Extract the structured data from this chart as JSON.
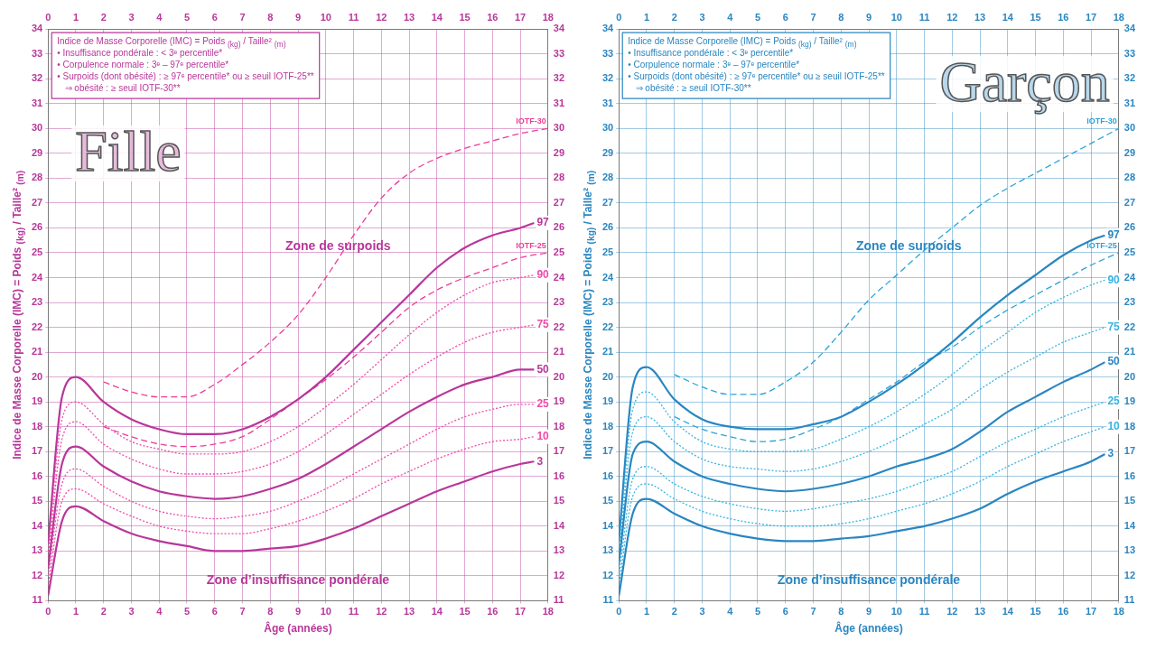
{
  "chart_data": [
    {
      "type": "line",
      "title": "Fille",
      "xlabel": "Âge (années)",
      "ylabel": "Indice de Masse Corporelle (IMC) = Poids $_{(kg)}$ / Taille² $_{(m)}$",
      "annotations": [
        "Indice de Masse Corporelle (IMC) = Poids $_{(kg)}$ / Taille² $_{(m)}$\n• Insuffisance pondérale : < 3ᵉ percentile*\n• Corpulence normale : 3ᵉ – 97ᵉ percentile*\n• Surpoids (dont obésité) : ≥ 97ᵉ percentile* ou ≥ seuil IOTF-25**\n   ⇒ obésité : ≥ seuil IOTF-30**",
        "Zone de surpoids",
        "Zone d’insuffisance pondérale"
      ],
      "xlim": [
        0,
        18
      ],
      "xticks": [
        0,
        1,
        2,
        3,
        4,
        5,
        6,
        7,
        8,
        9,
        10,
        11,
        12,
        13,
        14,
        15,
        16,
        17,
        18
      ],
      "x2lim": [
        0,
        18
      ],
      "x2ticks": [
        0,
        1,
        2,
        3,
        4,
        5,
        6,
        7,
        8,
        9,
        10,
        11,
        12,
        13,
        14,
        15,
        16,
        17,
        18
      ],
      "ylim": [
        11,
        34
      ],
      "yticks": [
        11,
        12,
        13,
        14,
        15,
        16,
        17,
        18,
        19,
        20,
        21,
        22,
        23,
        24,
        25,
        26,
        27,
        28,
        29,
        30,
        31,
        32,
        33,
        34
      ],
      "y2lim": [
        11,
        34
      ],
      "y2ticks": [
        11,
        12,
        13,
        14,
        15,
        16,
        17,
        18,
        19,
        20,
        21,
        22,
        23,
        24,
        25,
        26,
        27,
        28,
        29,
        30,
        31,
        32,
        33,
        34
      ],
      "grid": true,
      "legend": false,
      "marker": "none",
      "series": [
        {
          "name": "3",
          "color": "#b8379a",
          "line_style": "solid",
          "x": [
            0,
            0.5,
            1,
            2,
            3,
            4,
            5,
            6,
            7,
            8,
            9,
            10,
            11,
            12,
            13,
            14,
            15,
            16,
            17,
            17.5
          ],
          "values": [
            11.2,
            14.2,
            14.8,
            14.2,
            13.7,
            13.4,
            13.2,
            13.0,
            13.0,
            13.1,
            13.2,
            13.5,
            13.9,
            14.4,
            14.9,
            15.4,
            15.8,
            16.2,
            16.5,
            16.6
          ]
        },
        {
          "name": "10",
          "color": "#f04aa8",
          "line_style": "dotted",
          "x": [
            0,
            0.5,
            1,
            2,
            3,
            4,
            5,
            6,
            7,
            8,
            9,
            10,
            11,
            12,
            13,
            14,
            15,
            16,
            17,
            17.5
          ],
          "values": [
            11.6,
            15.0,
            15.5,
            14.9,
            14.4,
            14.0,
            13.8,
            13.7,
            13.7,
            13.9,
            14.2,
            14.6,
            15.1,
            15.7,
            16.2,
            16.7,
            17.1,
            17.4,
            17.5,
            17.6
          ]
        },
        {
          "name": "25",
          "color": "#f04aa8",
          "line_style": "dotted",
          "x": [
            0,
            0.5,
            1,
            2,
            3,
            4,
            5,
            6,
            7,
            8,
            9,
            10,
            11,
            12,
            13,
            14,
            15,
            16,
            17,
            17.5
          ],
          "values": [
            12.0,
            15.7,
            16.3,
            15.6,
            15.0,
            14.6,
            14.4,
            14.3,
            14.4,
            14.6,
            15.0,
            15.5,
            16.1,
            16.7,
            17.3,
            17.9,
            18.4,
            18.7,
            18.9,
            18.9
          ]
        },
        {
          "name": "50",
          "color": "#b8379a",
          "line_style": "solid",
          "x": [
            0,
            0.5,
            1,
            2,
            3,
            4,
            5,
            6,
            7,
            8,
            9,
            10,
            11,
            12,
            13,
            14,
            15,
            16,
            17,
            17.5
          ],
          "values": [
            12.3,
            16.5,
            17.2,
            16.4,
            15.8,
            15.4,
            15.2,
            15.1,
            15.2,
            15.5,
            15.9,
            16.5,
            17.2,
            17.9,
            18.6,
            19.2,
            19.7,
            20.0,
            20.3,
            20.3
          ]
        },
        {
          "name": "75",
          "color": "#f04aa8",
          "line_style": "dotted",
          "x": [
            0,
            0.5,
            1,
            2,
            3,
            4,
            5,
            6,
            7,
            8,
            9,
            10,
            11,
            12,
            13,
            14,
            15,
            16,
            17,
            17.5
          ],
          "values": [
            12.7,
            17.5,
            18.2,
            17.3,
            16.7,
            16.3,
            16.1,
            16.1,
            16.2,
            16.5,
            17.0,
            17.7,
            18.5,
            19.3,
            20.1,
            20.8,
            21.4,
            21.8,
            22.0,
            22.1
          ]
        },
        {
          "name": "90",
          "color": "#f04aa8",
          "line_style": "dotted",
          "x": [
            0,
            0.5,
            1,
            2,
            3,
            4,
            5,
            6,
            7,
            8,
            9,
            10,
            11,
            12,
            13,
            14,
            15,
            16,
            17,
            17.5
          ],
          "values": [
            13.0,
            18.3,
            19.0,
            18.1,
            17.4,
            17.1,
            16.9,
            16.9,
            17.0,
            17.4,
            18.0,
            18.8,
            19.7,
            20.7,
            21.7,
            22.6,
            23.3,
            23.8,
            24.0,
            24.1
          ]
        },
        {
          "name": "97",
          "color": "#b8379a",
          "line_style": "solid",
          "x": [
            0,
            0.5,
            1,
            2,
            3,
            4,
            5,
            6,
            7,
            8,
            9,
            10,
            11,
            12,
            13,
            14,
            15,
            16,
            17,
            17.5
          ],
          "values": [
            13.3,
            19.2,
            20.0,
            19.0,
            18.3,
            17.9,
            17.7,
            17.7,
            17.9,
            18.4,
            19.1,
            20.0,
            21.1,
            22.2,
            23.3,
            24.4,
            25.2,
            25.7,
            26.0,
            26.2
          ]
        },
        {
          "name": "IOTF-25",
          "color": "#ec3d96",
          "line_style": "dashed",
          "x": [
            2,
            3,
            4,
            5,
            6,
            7,
            8,
            9,
            10,
            11,
            12,
            13,
            14,
            15,
            16,
            17,
            18
          ],
          "values": [
            18.0,
            17.6,
            17.3,
            17.2,
            17.3,
            17.6,
            18.3,
            19.1,
            19.9,
            20.8,
            21.8,
            22.8,
            23.5,
            24.0,
            24.4,
            24.8,
            25.0
          ]
        },
        {
          "name": "IOTF-30",
          "color": "#ec3d96",
          "line_style": "dashed",
          "x": [
            2,
            3,
            4,
            5,
            6,
            7,
            8,
            9,
            10,
            11,
            12,
            13,
            14,
            15,
            16,
            17,
            18
          ],
          "values": [
            19.8,
            19.4,
            19.2,
            19.2,
            19.7,
            20.5,
            21.4,
            22.5,
            24.0,
            25.7,
            27.2,
            28.2,
            28.8,
            29.2,
            29.5,
            29.8,
            30.0
          ]
        }
      ]
    },
    {
      "type": "line",
      "title": "Garçon",
      "xlabel": "Âge (années)",
      "ylabel": "Indice de Masse Corporelle (IMC) = Poids $_{(kg)}$ / Taille² $_{(m)}$",
      "annotations": [
        "Indice de Masse Corporelle (IMC) = Poids $_{(kg)}$ / Taille² $_{(m)}$\n• Insuffisance pondérale : < 3ᵉ percentile*\n• Corpulence normale : 3ᵉ – 97ᵉ percentile*\n• Surpoids (dont obésité) : ≥ 97ᵉ percentile* ou ≥ seuil IOTF-25**\n   ⇒ obésité : ≥ seuil IOTF-30**",
        "Zone de surpoids",
        "Zone d’insuffisance pondérale"
      ],
      "xlim": [
        0,
        18
      ],
      "xticks": [
        0,
        1,
        2,
        3,
        4,
        5,
        6,
        7,
        8,
        9,
        10,
        11,
        12,
        13,
        14,
        15,
        16,
        17,
        18
      ],
      "x2lim": [
        0,
        18
      ],
      "x2ticks": [
        0,
        1,
        2,
        3,
        4,
        5,
        6,
        7,
        8,
        9,
        10,
        11,
        12,
        13,
        14,
        15,
        16,
        17,
        18
      ],
      "ylim": [
        11,
        34
      ],
      "yticks": [
        11,
        12,
        13,
        14,
        15,
        16,
        17,
        18,
        19,
        20,
        21,
        22,
        23,
        24,
        25,
        26,
        27,
        28,
        29,
        30,
        31,
        32,
        33,
        34
      ],
      "y2lim": [
        11,
        34
      ],
      "y2ticks": [
        11,
        12,
        13,
        14,
        15,
        16,
        17,
        18,
        19,
        20,
        21,
        22,
        23,
        24,
        25,
        26,
        27,
        28,
        29,
        30,
        31,
        32,
        33,
        34
      ],
      "grid": true,
      "legend": false,
      "marker": "none",
      "series": [
        {
          "name": "3",
          "color": "#2a86c0",
          "line_style": "solid",
          "x": [
            0,
            0.5,
            1,
            2,
            3,
            4,
            5,
            6,
            7,
            8,
            9,
            10,
            11,
            12,
            13,
            14,
            15,
            16,
            17,
            17.5
          ],
          "values": [
            11.2,
            14.5,
            15.1,
            14.5,
            14.0,
            13.7,
            13.5,
            13.4,
            13.4,
            13.5,
            13.6,
            13.8,
            14.0,
            14.3,
            14.7,
            15.3,
            15.8,
            16.2,
            16.6,
            16.9
          ]
        },
        {
          "name": "10",
          "color": "#36b4e0",
          "line_style": "dotted",
          "x": [
            0,
            0.5,
            1,
            2,
            3,
            4,
            5,
            6,
            7,
            8,
            9,
            10,
            11,
            12,
            13,
            14,
            15,
            16,
            17,
            17.5
          ],
          "values": [
            11.6,
            15.2,
            15.7,
            15.1,
            14.6,
            14.3,
            14.1,
            14.0,
            14.0,
            14.1,
            14.3,
            14.6,
            14.9,
            15.3,
            15.8,
            16.4,
            16.9,
            17.4,
            17.8,
            18.0
          ]
        },
        {
          "name": "25",
          "color": "#36b4e0",
          "line_style": "dotted",
          "x": [
            0,
            0.5,
            1,
            2,
            3,
            4,
            5,
            6,
            7,
            8,
            9,
            10,
            11,
            12,
            13,
            14,
            15,
            16,
            17,
            17.5
          ],
          "values": [
            12.0,
            15.9,
            16.4,
            15.7,
            15.2,
            14.9,
            14.7,
            14.6,
            14.7,
            14.9,
            15.1,
            15.4,
            15.8,
            16.2,
            16.8,
            17.4,
            17.9,
            18.4,
            18.8,
            19.0
          ]
        },
        {
          "name": "50",
          "color": "#2a86c0",
          "line_style": "solid",
          "x": [
            0,
            0.5,
            1,
            2,
            3,
            4,
            5,
            6,
            7,
            8,
            9,
            10,
            11,
            12,
            13,
            14,
            15,
            16,
            17,
            17.5
          ],
          "values": [
            12.5,
            16.9,
            17.4,
            16.6,
            16.0,
            15.7,
            15.5,
            15.4,
            15.5,
            15.7,
            16.0,
            16.4,
            16.7,
            17.1,
            17.8,
            18.6,
            19.2,
            19.8,
            20.3,
            20.6
          ]
        },
        {
          "name": "75",
          "color": "#36b4e0",
          "line_style": "dotted",
          "x": [
            0,
            0.5,
            1,
            2,
            3,
            4,
            5,
            6,
            7,
            8,
            9,
            10,
            11,
            12,
            13,
            14,
            15,
            16,
            17,
            17.5
          ],
          "values": [
            12.8,
            17.8,
            18.4,
            17.4,
            16.7,
            16.4,
            16.3,
            16.2,
            16.3,
            16.6,
            17.0,
            17.5,
            18.1,
            18.7,
            19.5,
            20.2,
            20.8,
            21.4,
            21.8,
            22.0
          ]
        },
        {
          "name": "90",
          "color": "#36b4e0",
          "line_style": "dotted",
          "x": [
            0,
            0.5,
            1,
            2,
            3,
            4,
            5,
            6,
            7,
            8,
            9,
            10,
            11,
            12,
            13,
            14,
            15,
            16,
            17,
            17.5
          ],
          "values": [
            13.1,
            18.7,
            19.4,
            18.2,
            17.4,
            17.1,
            17.0,
            17.0,
            17.1,
            17.5,
            18.0,
            18.6,
            19.3,
            20.1,
            21.0,
            21.8,
            22.6,
            23.2,
            23.7,
            23.9
          ]
        },
        {
          "name": "97",
          "color": "#2a86c0",
          "line_style": "solid",
          "x": [
            0,
            0.5,
            1,
            2,
            3,
            4,
            5,
            6,
            7,
            8,
            9,
            10,
            11,
            12,
            13,
            14,
            15,
            16,
            17,
            17.5
          ],
          "values": [
            13.4,
            19.6,
            20.4,
            19.1,
            18.3,
            18.0,
            17.9,
            17.9,
            18.1,
            18.4,
            19.0,
            19.7,
            20.5,
            21.4,
            22.4,
            23.3,
            24.1,
            24.9,
            25.5,
            25.7
          ]
        },
        {
          "name": "IOTF-25",
          "color": "#2aa4d8",
          "line_style": "dashed",
          "x": [
            2,
            3,
            4,
            5,
            6,
            7,
            8,
            9,
            10,
            11,
            12,
            13,
            14,
            15,
            16,
            17,
            18
          ],
          "values": [
            18.4,
            17.9,
            17.6,
            17.4,
            17.5,
            17.9,
            18.4,
            19.1,
            19.8,
            20.6,
            21.2,
            22.0,
            22.7,
            23.3,
            23.9,
            24.5,
            25.0
          ]
        },
        {
          "name": "IOTF-30",
          "color": "#2aa4d8",
          "line_style": "dashed",
          "x": [
            2,
            3,
            4,
            5,
            6,
            7,
            8,
            9,
            10,
            11,
            12,
            13,
            14,
            15,
            16,
            17,
            18
          ],
          "values": [
            20.1,
            19.6,
            19.3,
            19.3,
            19.8,
            20.6,
            21.8,
            23.1,
            24.1,
            25.1,
            26.0,
            26.9,
            27.6,
            28.2,
            28.8,
            29.4,
            30.0
          ]
        }
      ]
    }
  ]
}
